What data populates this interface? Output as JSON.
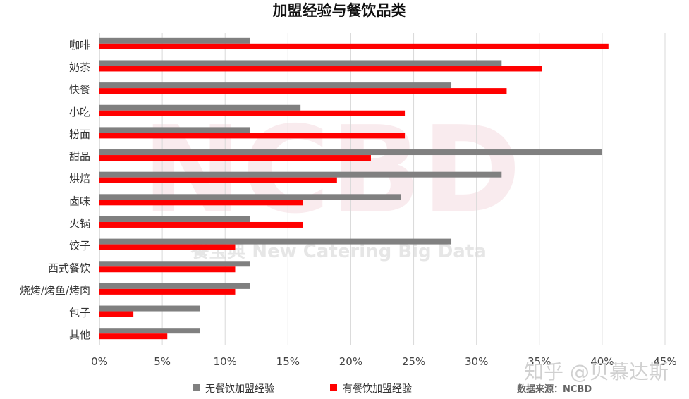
{
  "chart_data": {
    "type": "bar",
    "orientation": "horizontal",
    "title": "加盟经验与餐饮品类",
    "categories": [
      "咖啡",
      "奶茶",
      "快餐",
      "小吃",
      "粉面",
      "甜品",
      "烘焙",
      "卤味",
      "火锅",
      "饺子",
      "西式餐饮",
      "烧烤/烤鱼/烤肉",
      "包子",
      "其他"
    ],
    "series": [
      {
        "name": "无餐饮加盟经验",
        "color": "#808080",
        "values": [
          0.12,
          0.32,
          0.28,
          0.16,
          0.12,
          0.4,
          0.32,
          0.24,
          0.12,
          0.28,
          0.12,
          0.12,
          0.08,
          0.08
        ]
      },
      {
        "name": "有餐饮加盟经验",
        "color": "#ff0000",
        "values": [
          0.405,
          0.352,
          0.324,
          0.243,
          0.243,
          0.216,
          0.189,
          0.162,
          0.162,
          0.108,
          0.108,
          0.108,
          0.027,
          0.054
        ]
      }
    ],
    "xlim": [
      0,
      0.45
    ],
    "xticks": [
      "0%",
      "5%",
      "10%",
      "15%",
      "20%",
      "25%",
      "30%",
      "35%",
      "40%",
      "45%"
    ],
    "grid": true,
    "legend_position": "bottom"
  },
  "source_note": "数据来源：NCBD",
  "watermark": {
    "text": "NCBD",
    "sub_text": "餐宝典 New Catering Big Data"
  },
  "zhihu_watermark": "知乎 @贝慕达斯"
}
